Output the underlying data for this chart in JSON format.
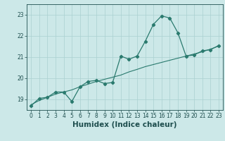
{
  "xlabel": "Humidex (Indice chaleur)",
  "x": [
    0,
    1,
    2,
    3,
    4,
    5,
    6,
    7,
    8,
    9,
    10,
    11,
    12,
    13,
    14,
    15,
    16,
    17,
    18,
    19,
    20,
    21,
    22,
    23
  ],
  "y_line": [
    18.7,
    19.05,
    19.1,
    19.35,
    19.35,
    18.9,
    19.6,
    19.85,
    19.9,
    19.75,
    19.8,
    21.05,
    20.9,
    21.05,
    21.75,
    22.55,
    22.95,
    22.85,
    22.15,
    21.05,
    21.1,
    21.3,
    21.35,
    21.55
  ],
  "y_trend": [
    18.75,
    18.95,
    19.1,
    19.25,
    19.35,
    19.45,
    19.6,
    19.72,
    19.85,
    19.95,
    20.05,
    20.15,
    20.3,
    20.42,
    20.55,
    20.65,
    20.75,
    20.85,
    20.95,
    21.05,
    21.15,
    21.25,
    21.38,
    21.52
  ],
  "line_color": "#2a7a6e",
  "bg_color": "#cce8e8",
  "grid_color": "#aad0d0",
  "ylim": [
    18.5,
    23.5
  ],
  "xlim": [
    -0.5,
    23.5
  ],
  "yticks": [
    19,
    20,
    21,
    22,
    23
  ],
  "xticks": [
    0,
    1,
    2,
    3,
    4,
    5,
    6,
    7,
    8,
    9,
    10,
    11,
    12,
    13,
    14,
    15,
    16,
    17,
    18,
    19,
    20,
    21,
    22,
    23
  ],
  "tick_fontsize": 5.5,
  "xlabel_fontsize": 7.5
}
